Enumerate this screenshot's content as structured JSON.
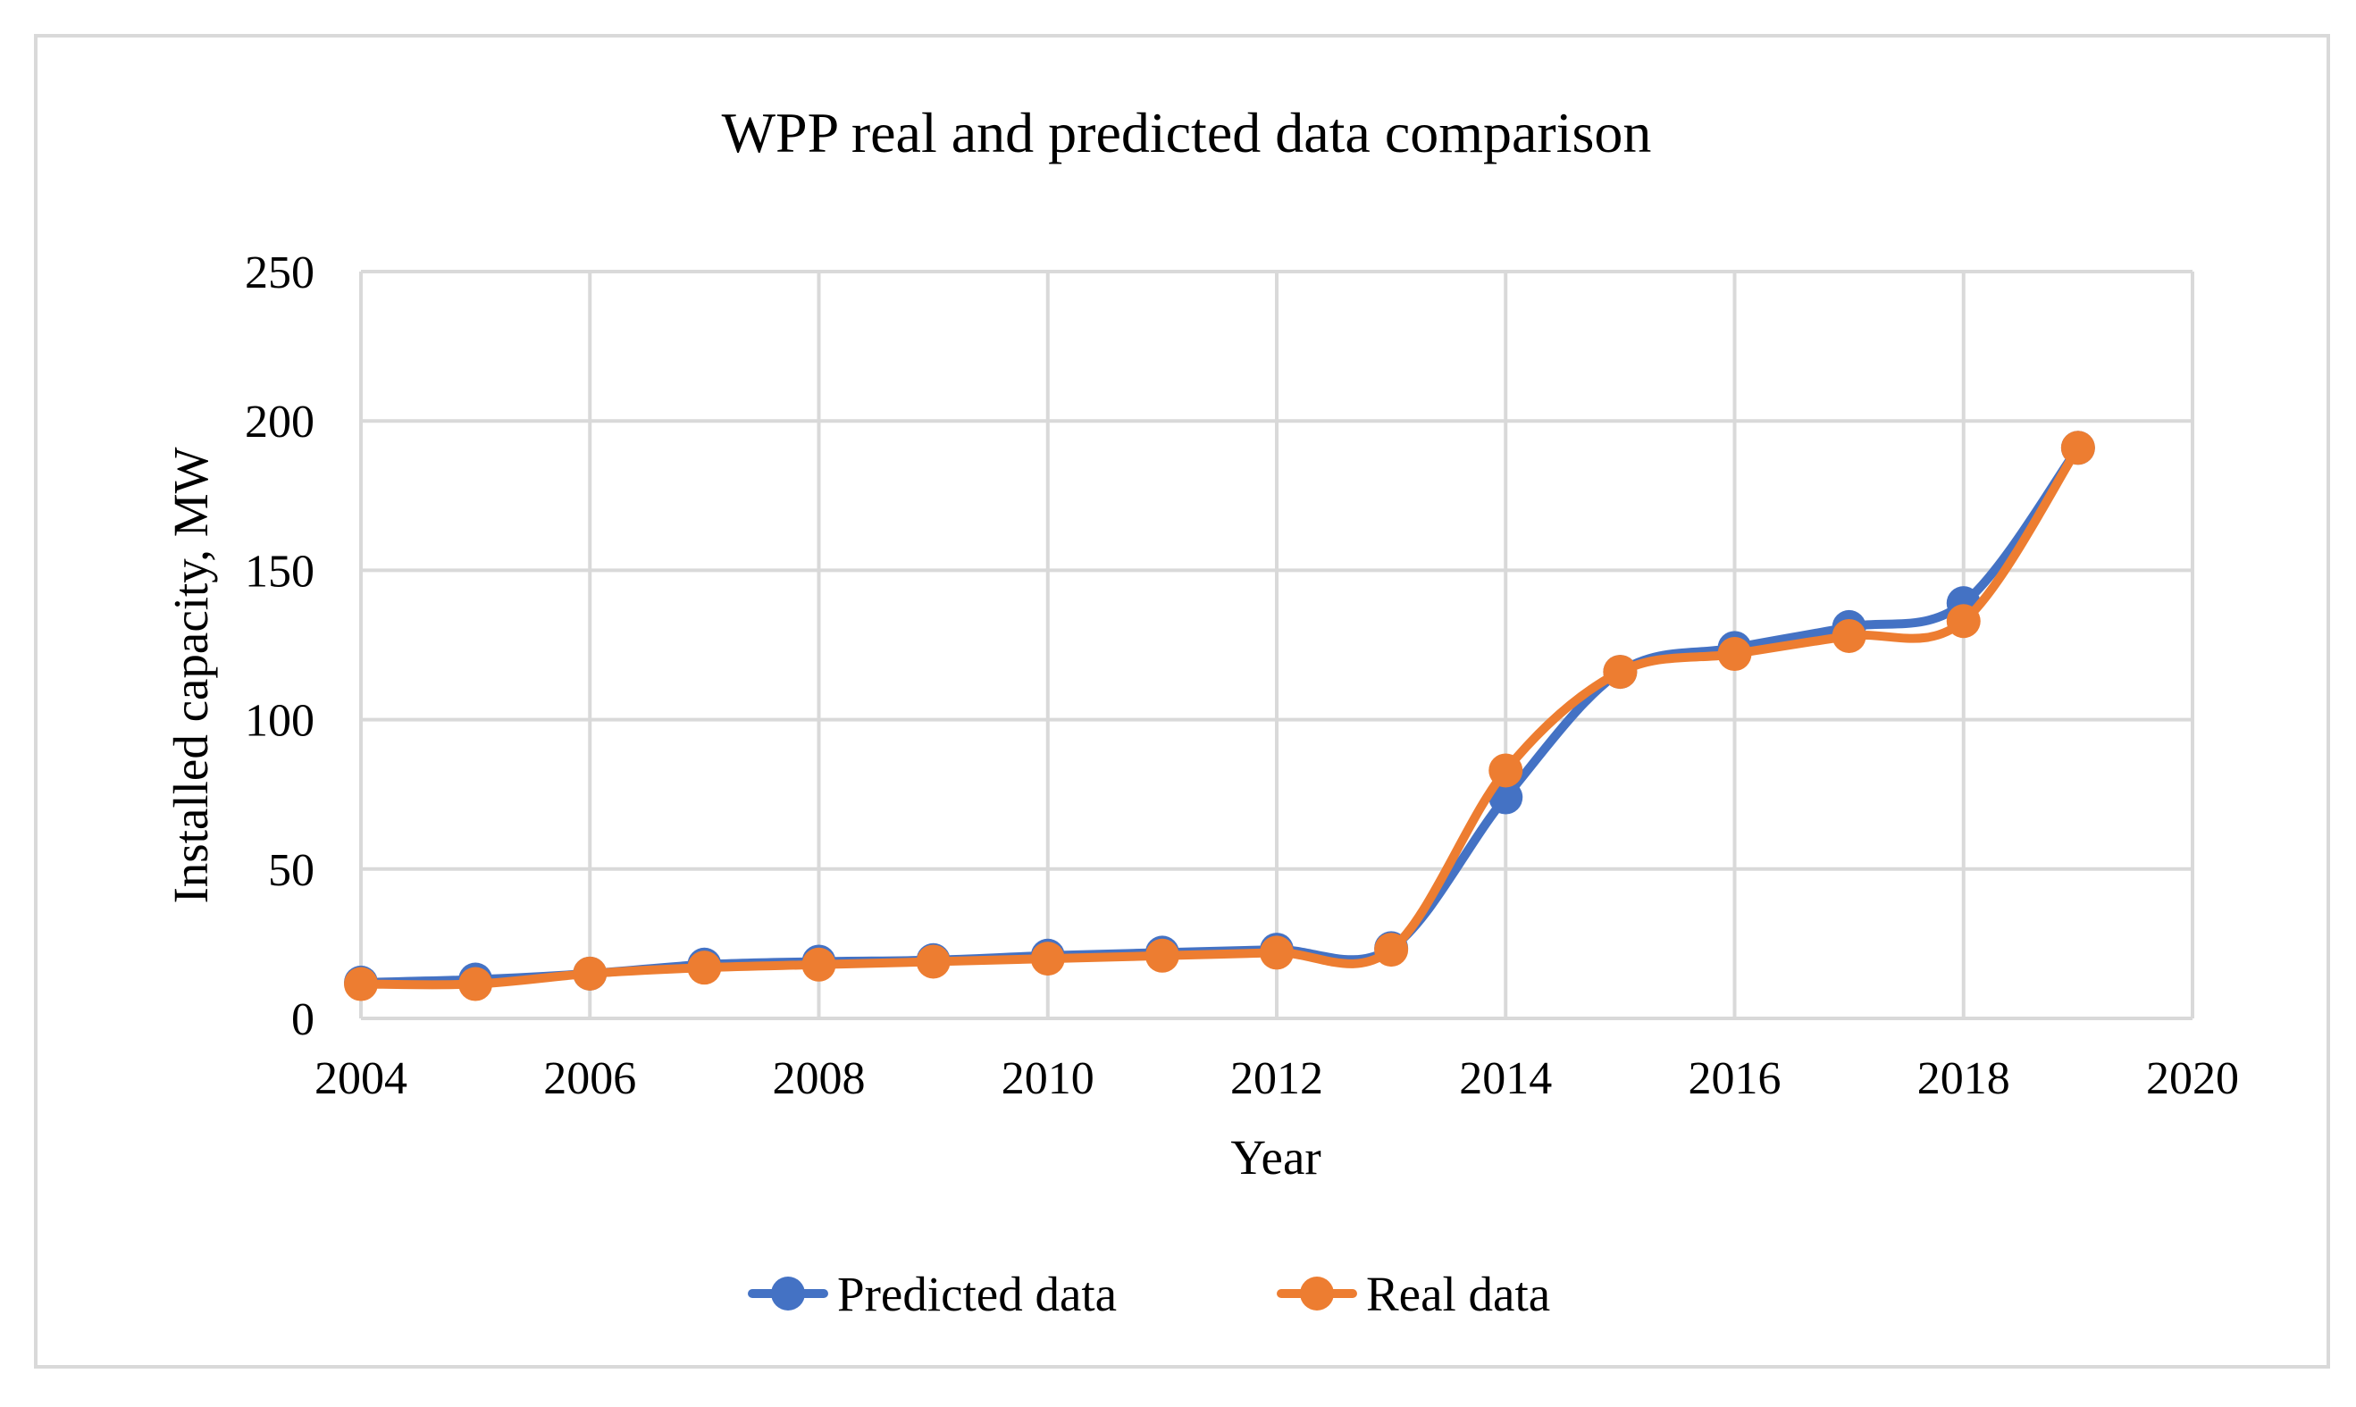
{
  "chart_data": {
    "type": "line",
    "title": "WPP real and predicted data comparison",
    "xlabel": "Year",
    "ylabel": "Installed capacity, MW",
    "xlim": [
      2004,
      2020
    ],
    "ylim": [
      0,
      250
    ],
    "x_ticks": [
      2004,
      2006,
      2008,
      2010,
      2012,
      2014,
      2016,
      2018,
      2020
    ],
    "y_ticks": [
      0,
      50,
      100,
      150,
      200,
      250
    ],
    "grid": true,
    "smooth": true,
    "legend_position": "bottom",
    "x": [
      2004,
      2005,
      2006,
      2007,
      2008,
      2009,
      2010,
      2011,
      2012,
      2013,
      2014,
      2015,
      2016,
      2017,
      2018,
      2019
    ],
    "series": [
      {
        "name": "Predicted data",
        "color": "#4472c4",
        "values": [
          12,
          13,
          15,
          18,
          19,
          19.5,
          21,
          22,
          23,
          23.5,
          74,
          116,
          124,
          131,
          139,
          191
        ]
      },
      {
        "name": "Real data",
        "color": "#ed7d31",
        "values": [
          11.5,
          11.5,
          15,
          17,
          18,
          19,
          20,
          21,
          22,
          23,
          83,
          116,
          122,
          128,
          133,
          191
        ]
      }
    ]
  }
}
